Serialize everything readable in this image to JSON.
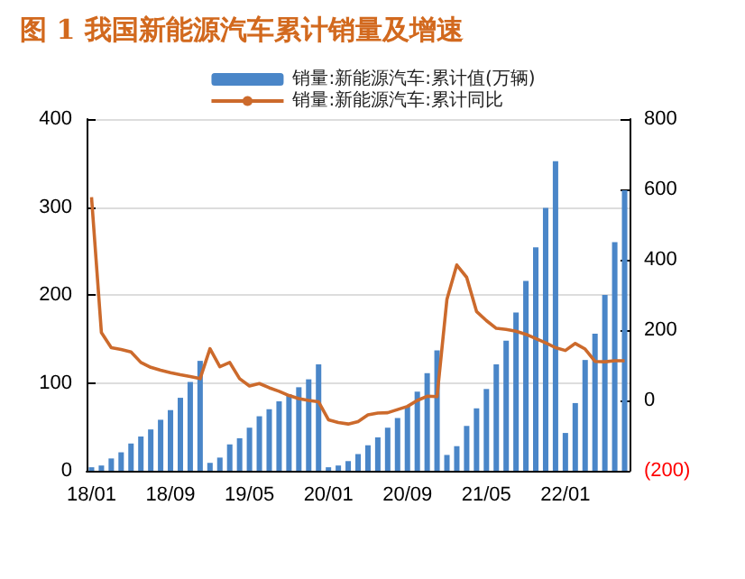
{
  "chart_data": {
    "type": "bar",
    "title": "图 1 我国新能源汽车累计销量及增速",
    "categories": [
      "18/01",
      null,
      null,
      null,
      null,
      null,
      null,
      null,
      "18/09",
      null,
      null,
      null,
      null,
      null,
      null,
      null,
      "19/05",
      null,
      null,
      null,
      null,
      null,
      null,
      null,
      "20/01",
      null,
      null,
      null,
      null,
      null,
      null,
      null,
      "20/09",
      null,
      null,
      null,
      null,
      null,
      null,
      null,
      "21/05",
      null,
      null,
      null,
      null,
      null,
      null,
      null,
      "22/01",
      null,
      null,
      null,
      null,
      null,
      null
    ],
    "series": [
      {
        "name": "销量:新能源汽车:累计值(万辆)",
        "color": "#4a86c8",
        "values": [
          4,
          6,
          14,
          21,
          31,
          39,
          47,
          58,
          69,
          83,
          101,
          125,
          9,
          15,
          30,
          37,
          49,
          62,
          70,
          79,
          87,
          95,
          104,
          121,
          4,
          6,
          11,
          19,
          29,
          38,
          49,
          60,
          73,
          90,
          111,
          137,
          18,
          28,
          51,
          71,
          93,
          121,
          148,
          180,
          216,
          254,
          299,
          352,
          43,
          77,
          126,
          156,
          200,
          260,
          319
        ]
      },
      {
        "name": "销量:新能源汽车:累计同比",
        "type": "line",
        "axis": "y2",
        "color": "#cc6a2c",
        "values": [
          578,
          193,
          150,
          145,
          138,
          108,
          94,
          86,
          79,
          73,
          68,
          62,
          147,
          96,
          108,
          62,
          41,
          48,
          36,
          26,
          14,
          5,
          0,
          -4,
          -55,
          -63,
          -67,
          -60,
          -41,
          -36,
          -35,
          -26,
          -17,
          0,
          12,
          11,
          287,
          385,
          350,
          253,
          227,
          205,
          202,
          197,
          188,
          176,
          164,
          150,
          142,
          162,
          146,
          111,
          110,
          113,
          113
        ]
      }
    ],
    "ylim": [
      0,
      400
    ],
    "yticks": [
      0,
      100,
      200,
      300,
      400
    ],
    "y2lim": [
      -200,
      800
    ],
    "y2ticks": [
      {
        "value": -200,
        "label": "(200)"
      },
      0,
      200,
      400,
      600,
      800
    ],
    "grid": "y",
    "legend": "top",
    "marker": "none",
    "line_style": "solid"
  }
}
